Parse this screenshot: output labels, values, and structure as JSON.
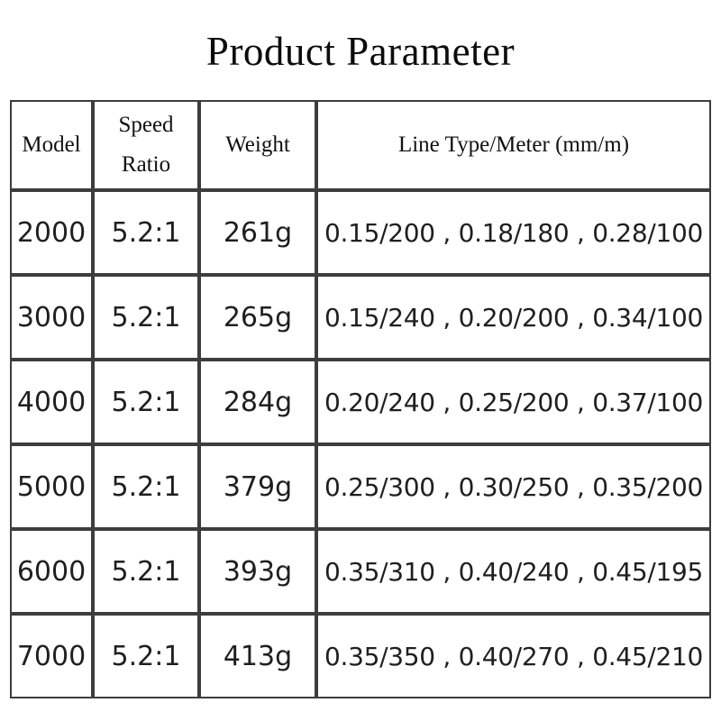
{
  "title": "Product Parameter",
  "table": {
    "headers": [
      "Model",
      "Speed Ratio",
      "Weight",
      "Line Type/Meter (mm/m)"
    ],
    "rows": [
      [
        "2000",
        "5.2:1",
        "261g",
        "0.15/200 , 0.18/180 , 0.28/100"
      ],
      [
        "3000",
        "5.2:1",
        "265g",
        "0.15/240 , 0.20/200 , 0.34/100"
      ],
      [
        "4000",
        "5.2:1",
        "284g",
        "0.20/240 , 0.25/200 , 0.37/100"
      ],
      [
        "5000",
        "5.2:1",
        "379g",
        "0.25/300 , 0.30/250 , 0.35/200"
      ],
      [
        "6000",
        "5.2:1",
        "393g",
        "0.35/310 , 0.40/240 , 0.45/195"
      ],
      [
        "7000",
        "5.2:1",
        "413g",
        "0.35/350 , 0.40/270 , 0.45/210"
      ]
    ]
  }
}
